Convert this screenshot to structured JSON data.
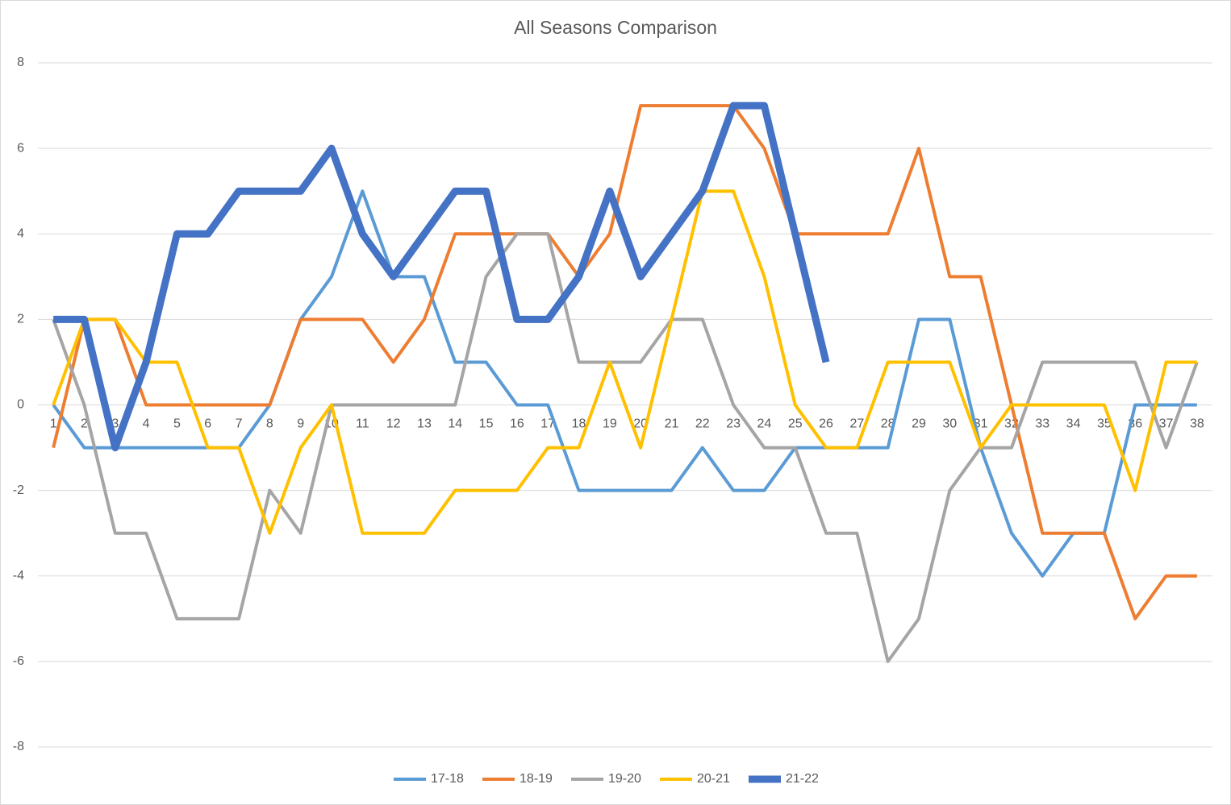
{
  "chart_data": {
    "type": "line",
    "title": "All Seasons Comparison",
    "categories": [
      "1",
      "2",
      "3",
      "4",
      "5",
      "6",
      "7",
      "8",
      "9",
      "10",
      "11",
      "12",
      "13",
      "14",
      "15",
      "16",
      "17",
      "18",
      "19",
      "20",
      "21",
      "22",
      "23",
      "24",
      "25",
      "26",
      "27",
      "28",
      "29",
      "30",
      "31",
      "32",
      "33",
      "34",
      "35",
      "36",
      "37",
      "38"
    ],
    "series": [
      {
        "name": "17-18",
        "color": "#5b9bd5",
        "width": 4,
        "values": [
          0,
          -1,
          -1,
          -1,
          -1,
          -1,
          -1,
          0,
          2,
          3,
          5,
          3,
          3,
          1,
          1,
          0,
          0,
          -2,
          -2,
          -2,
          -2,
          -1,
          -2,
          -2,
          -1,
          -1,
          -1,
          -1,
          2,
          2,
          -1,
          -3,
          -4,
          -3,
          -3,
          0,
          0,
          0
        ]
      },
      {
        "name": "18-19",
        "color": "#ed7d31",
        "width": 4,
        "values": [
          -1,
          2,
          2,
          0,
          0,
          0,
          0,
          0,
          2,
          2,
          2,
          1,
          2,
          4,
          4,
          4,
          4,
          3,
          4,
          7,
          7,
          7,
          7,
          6,
          4,
          4,
          4,
          4,
          6,
          3,
          3,
          0,
          -3,
          -3,
          -3,
          -5,
          -4,
          -4
        ]
      },
      {
        "name": "19-20",
        "color": "#a5a5a5",
        "width": 4,
        "values": [
          2,
          0,
          -3,
          -3,
          -5,
          -5,
          -5,
          -2,
          -3,
          0,
          0,
          0,
          0,
          0,
          3,
          4,
          4,
          1,
          1,
          1,
          2,
          2,
          0,
          -1,
          -1,
          -3,
          -3,
          -6,
          -5,
          -2,
          -1,
          -1,
          1,
          1,
          1,
          1,
          -1,
          1
        ]
      },
      {
        "name": "20-21",
        "color": "#ffc000",
        "width": 4,
        "values": [
          0,
          2,
          2,
          1,
          1,
          -1,
          -1,
          -3,
          -1,
          0,
          -3,
          -3,
          -3,
          -2,
          -2,
          -2,
          -1,
          -1,
          1,
          -1,
          2,
          5,
          5,
          3,
          0,
          -1,
          -1,
          1,
          1,
          1,
          -1,
          0,
          0,
          0,
          0,
          -2,
          1,
          1
        ]
      },
      {
        "name": "21-22",
        "color": "#4472c4",
        "width": 9,
        "values": [
          2,
          2,
          -1,
          1,
          4,
          4,
          5,
          5,
          5,
          6,
          4,
          3,
          4,
          5,
          5,
          2,
          2,
          3,
          5,
          3,
          4,
          5,
          7,
          7,
          4,
          1,
          null,
          null,
          null,
          null,
          null,
          null,
          null,
          null,
          null,
          null,
          null,
          null
        ]
      }
    ],
    "ylim": [
      -8,
      8
    ],
    "yticks": [
      -8,
      -6,
      -4,
      -2,
      0,
      2,
      4,
      6,
      8
    ],
    "grid": true,
    "legend": "bottom"
  }
}
